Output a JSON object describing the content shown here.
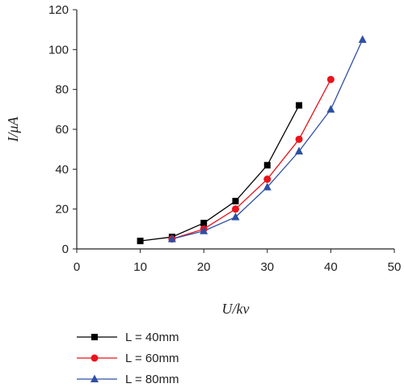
{
  "chart_data": {
    "type": "line",
    "title": "",
    "xlabel": "U/kv",
    "ylabel": "I/μA",
    "xlim": [
      0,
      50
    ],
    "ylim": [
      0,
      120
    ],
    "xticks": [
      0,
      10,
      20,
      30,
      40,
      50
    ],
    "yticks": [
      0,
      20,
      40,
      60,
      80,
      100,
      120
    ],
    "grid": false,
    "legend_position": "bottom-left",
    "series": [
      {
        "name": "L = 40mm",
        "color": "#000000",
        "marker": "square",
        "x": [
          10,
          15,
          20,
          25,
          30,
          35
        ],
        "y": [
          4,
          6,
          13,
          24,
          42,
          72
        ]
      },
      {
        "name": "L = 60mm",
        "color": "#e8141b",
        "marker": "circle",
        "x": [
          15,
          20,
          25,
          30,
          35,
          40
        ],
        "y": [
          5,
          10,
          20,
          35,
          55,
          85
        ]
      },
      {
        "name": "L = 80mm",
        "color": "#2e4fa3",
        "marker": "triangle",
        "x": [
          15,
          20,
          25,
          30,
          35,
          40,
          45
        ],
        "y": [
          5,
          9,
          16,
          31,
          49,
          70,
          105
        ]
      }
    ]
  }
}
